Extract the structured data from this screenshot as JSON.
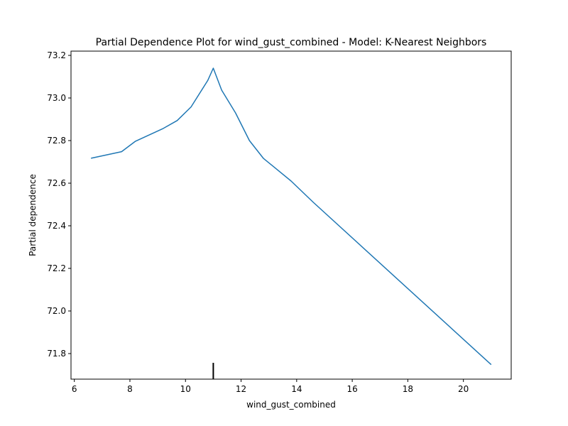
{
  "chart_data": {
    "type": "line",
    "title": "Partial Dependence Plot for wind_gust_combined - Model: K-Nearest Neighbors",
    "xlabel": "wind_gust_combined",
    "ylabel": "Partial dependence",
    "xlim": [
      5.88,
      21.72
    ],
    "ylim": [
      71.68,
      73.22
    ],
    "x_ticks": [
      6,
      8,
      10,
      12,
      14,
      16,
      18,
      20
    ],
    "x_tick_labels": [
      "6",
      "8",
      "10",
      "12",
      "14",
      "16",
      "18",
      "20"
    ],
    "y_ticks": [
      71.8,
      72.0,
      72.2,
      72.4,
      72.6,
      72.8,
      73.0,
      73.2
    ],
    "y_tick_labels": [
      "71.8",
      "72.0",
      "72.2",
      "72.4",
      "72.6",
      "72.8",
      "73.0",
      "73.2"
    ],
    "grid": false,
    "series": [
      {
        "color": "#1f77b4",
        "x": [
          6.6,
          7.7,
          8.2,
          9.2,
          9.7,
          10.2,
          10.8,
          11.0,
          11.3,
          11.8,
          12.3,
          12.8,
          13.8,
          14.6,
          21.0
        ],
        "y": [
          72.717,
          72.748,
          72.797,
          72.857,
          72.894,
          72.958,
          73.082,
          73.14,
          73.037,
          72.93,
          72.8,
          72.717,
          72.61,
          72.51,
          71.748
        ]
      }
    ],
    "rug": {
      "color": "#000000",
      "x": [
        11.0
      ]
    }
  }
}
